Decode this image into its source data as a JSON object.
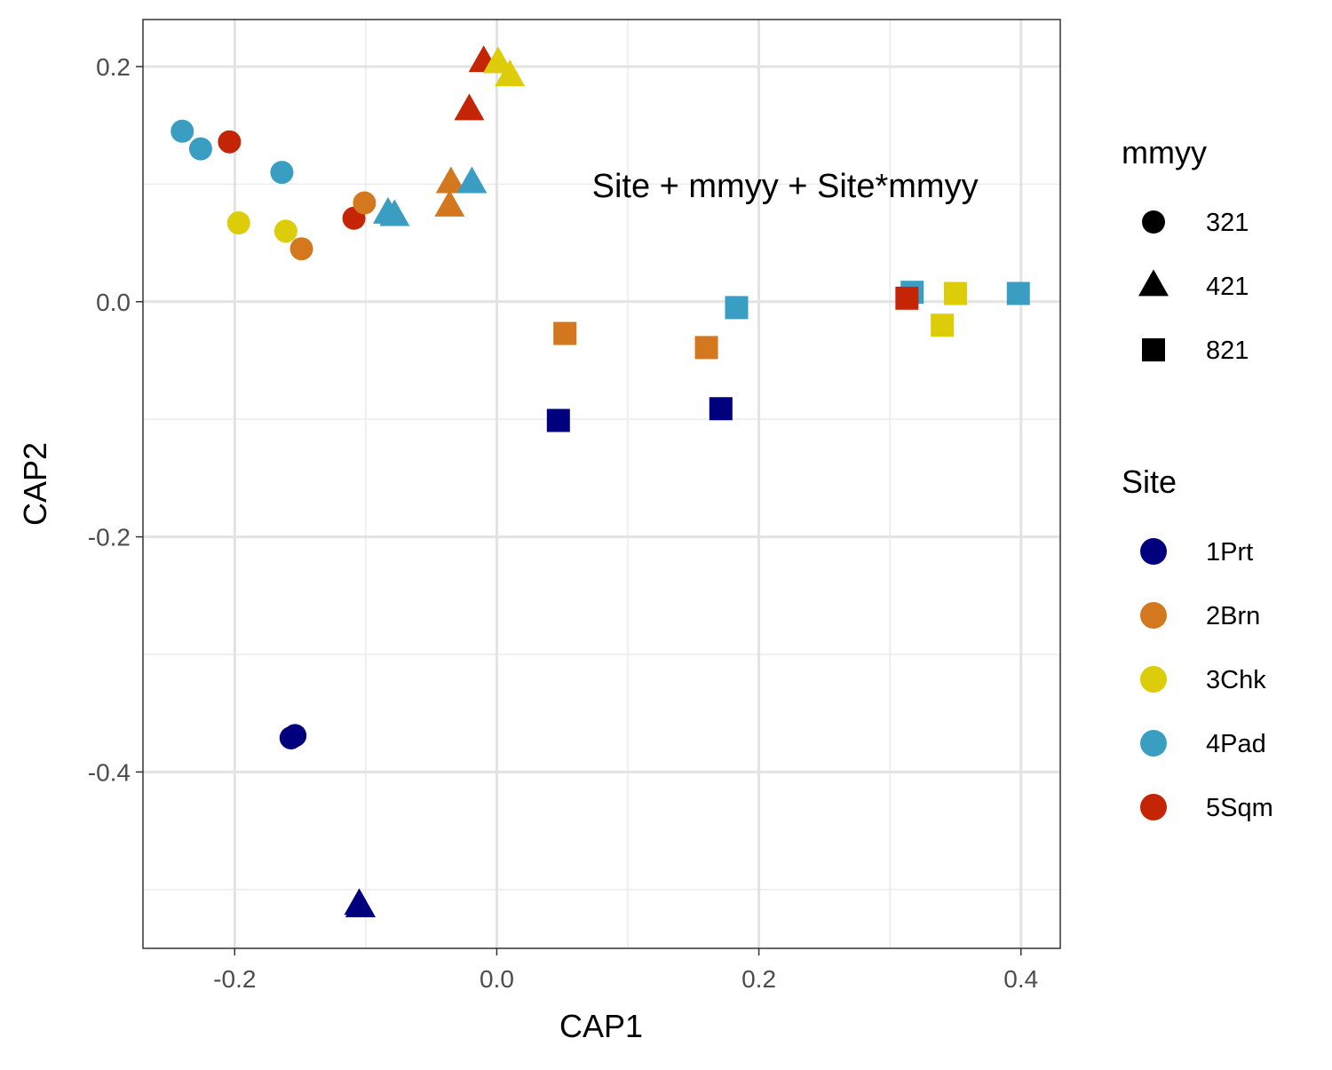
{
  "chart_data": {
    "type": "scatter",
    "xlabel": "CAP1",
    "ylabel": "CAP2",
    "xlim": [
      -0.27,
      0.43
    ],
    "ylim": [
      -0.55,
      0.24
    ],
    "x_ticks": [
      -0.2,
      0.0,
      0.2,
      0.4
    ],
    "x_tick_labels": [
      "-0.2",
      "0.0",
      "0.2",
      "0.4"
    ],
    "y_ticks": [
      -0.4,
      -0.2,
      0.0,
      0.2
    ],
    "y_tick_labels": [
      "-0.4",
      "-0.2",
      "0.0",
      "0.2"
    ],
    "grid": true,
    "annotation": {
      "text": "Site + mmyy + Site*mmyy",
      "x": 0.22,
      "y": 0.098
    },
    "legends": {
      "shape": {
        "title": "mmyy",
        "items": [
          {
            "label": "321",
            "shape": "circle"
          },
          {
            "label": "421",
            "shape": "triangle"
          },
          {
            "label": "821",
            "shape": "square"
          }
        ]
      },
      "color": {
        "title": "Site",
        "items": [
          {
            "label": "1Prt",
            "color": "#00007f"
          },
          {
            "label": "2Brn",
            "color": "#d4781f"
          },
          {
            "label": "3Chk",
            "color": "#dccc0a"
          },
          {
            "label": "4Pad",
            "color": "#3a9ec2"
          },
          {
            "label": "5Sqm",
            "color": "#c42505"
          }
        ]
      }
    },
    "points": [
      {
        "x": -0.24,
        "y": 0.145,
        "site": "4Pad",
        "mmyy": "321"
      },
      {
        "x": -0.226,
        "y": 0.13,
        "site": "4Pad",
        "mmyy": "321"
      },
      {
        "x": -0.164,
        "y": 0.11,
        "site": "4Pad",
        "mmyy": "321"
      },
      {
        "x": -0.204,
        "y": 0.136,
        "site": "5Sqm",
        "mmyy": "321"
      },
      {
        "x": -0.109,
        "y": 0.071,
        "site": "5Sqm",
        "mmyy": "321"
      },
      {
        "x": -0.197,
        "y": 0.067,
        "site": "3Chk",
        "mmyy": "321"
      },
      {
        "x": -0.161,
        "y": 0.06,
        "site": "3Chk",
        "mmyy": "321"
      },
      {
        "x": -0.101,
        "y": 0.084,
        "site": "2Brn",
        "mmyy": "321"
      },
      {
        "x": -0.149,
        "y": 0.045,
        "site": "2Brn",
        "mmyy": "321"
      },
      {
        "x": -0.157,
        "y": -0.371,
        "site": "1Prt",
        "mmyy": "321"
      },
      {
        "x": -0.154,
        "y": -0.369,
        "site": "1Prt",
        "mmyy": "321"
      },
      {
        "x": -0.01,
        "y": 0.204,
        "site": "5Sqm",
        "mmyy": "421"
      },
      {
        "x": -0.021,
        "y": 0.163,
        "site": "5Sqm",
        "mmyy": "421"
      },
      {
        "x": 0.001,
        "y": 0.203,
        "site": "3Chk",
        "mmyy": "421"
      },
      {
        "x": 0.01,
        "y": 0.192,
        "site": "3Chk",
        "mmyy": "421"
      },
      {
        "x": -0.035,
        "y": 0.101,
        "site": "2Brn",
        "mmyy": "421"
      },
      {
        "x": -0.036,
        "y": 0.081,
        "site": "2Brn",
        "mmyy": "421"
      },
      {
        "x": -0.019,
        "y": 0.101,
        "site": "4Pad",
        "mmyy": "421"
      },
      {
        "x": -0.083,
        "y": 0.075,
        "site": "4Pad",
        "mmyy": "421"
      },
      {
        "x": -0.078,
        "y": 0.073,
        "site": "4Pad",
        "mmyy": "421"
      },
      {
        "x": -0.105,
        "y": -0.513,
        "site": "1Prt",
        "mmyy": "421"
      },
      {
        "x": -0.104,
        "y": -0.515,
        "site": "1Prt",
        "mmyy": "421"
      },
      {
        "x": 0.052,
        "y": -0.027,
        "site": "2Brn",
        "mmyy": "821"
      },
      {
        "x": 0.16,
        "y": -0.039,
        "site": "2Brn",
        "mmyy": "821"
      },
      {
        "x": 0.183,
        "y": -0.005,
        "site": "4Pad",
        "mmyy": "821"
      },
      {
        "x": 0.317,
        "y": 0.008,
        "site": "4Pad",
        "mmyy": "821"
      },
      {
        "x": 0.398,
        "y": 0.007,
        "site": "4Pad",
        "mmyy": "821"
      },
      {
        "x": 0.313,
        "y": 0.003,
        "site": "5Sqm",
        "mmyy": "821"
      },
      {
        "x": 0.35,
        "y": 0.007,
        "site": "3Chk",
        "mmyy": "821"
      },
      {
        "x": 0.34,
        "y": -0.02,
        "site": "3Chk",
        "mmyy": "821"
      },
      {
        "x": 0.047,
        "y": -0.101,
        "site": "1Prt",
        "mmyy": "821"
      },
      {
        "x": 0.171,
        "y": -0.091,
        "site": "1Prt",
        "mmyy": "821"
      }
    ]
  }
}
